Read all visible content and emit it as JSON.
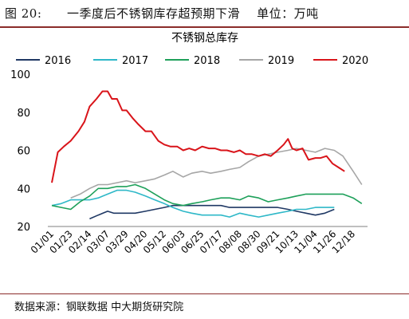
{
  "header": {
    "title": "图 20:      一季度后不锈钢库存超预期下滑    单位：万吨"
  },
  "source": "数据来源：钢联数据 中大期货研究院",
  "colors": {
    "header_rule": "#8b2c2a"
  },
  "chart_data": {
    "type": "line",
    "title": "不锈钢总库存",
    "xlabel": "",
    "ylabel": "",
    "ylim": [
      20,
      100
    ],
    "yticks": [
      20,
      40,
      60,
      80,
      100
    ],
    "grid": false,
    "legend": "top",
    "x_ticks": [
      "01/01",
      "01/23",
      "02/14",
      "03/07",
      "03/29",
      "04/20",
      "05/12",
      "06/03",
      "06/25",
      "07/17",
      "08/08",
      "08/30",
      "09/21",
      "10/13",
      "11/04",
      "11/26",
      "12/18"
    ],
    "series": [
      {
        "name": "2016",
        "color": "#1f3864",
        "points": [
          [
            "02/14",
            24
          ],
          [
            "02/24",
            26
          ],
          [
            "03/07",
            28
          ],
          [
            "03/14",
            27
          ],
          [
            "03/29",
            27
          ],
          [
            "04/08",
            27
          ],
          [
            "04/20",
            28
          ],
          [
            "05/01",
            29
          ],
          [
            "05/12",
            30
          ],
          [
            "05/22",
            31
          ],
          [
            "06/03",
            31
          ],
          [
            "06/13",
            31
          ],
          [
            "06/25",
            31
          ],
          [
            "07/05",
            31
          ],
          [
            "07/17",
            31
          ],
          [
            "07/27",
            30
          ],
          [
            "08/08",
            30
          ],
          [
            "08/18",
            30
          ],
          [
            "08/30",
            30
          ],
          [
            "09/10",
            30
          ],
          [
            "09/21",
            30
          ],
          [
            "10/03",
            29
          ],
          [
            "10/13",
            28
          ],
          [
            "10/24",
            27
          ],
          [
            "11/04",
            26
          ],
          [
            "11/15",
            27
          ],
          [
            "11/26",
            29
          ]
        ]
      },
      {
        "name": "2017",
        "color": "#2eb8c8",
        "points": [
          [
            "01/01",
            31
          ],
          [
            "01/12",
            32
          ],
          [
            "01/23",
            34
          ],
          [
            "02/03",
            34
          ],
          [
            "02/14",
            34
          ],
          [
            "02/24",
            35
          ],
          [
            "03/07",
            37
          ],
          [
            "03/18",
            39
          ],
          [
            "03/29",
            39
          ],
          [
            "04/08",
            38
          ],
          [
            "04/20",
            36
          ],
          [
            "05/01",
            34
          ],
          [
            "05/12",
            32
          ],
          [
            "05/22",
            30
          ],
          [
            "06/03",
            28
          ],
          [
            "06/13",
            27
          ],
          [
            "06/25",
            26
          ],
          [
            "07/05",
            26
          ],
          [
            "07/17",
            26
          ],
          [
            "07/27",
            25
          ],
          [
            "08/08",
            27
          ],
          [
            "08/18",
            26
          ],
          [
            "08/30",
            25
          ],
          [
            "09/10",
            26
          ],
          [
            "09/21",
            27
          ],
          [
            "10/03",
            28
          ],
          [
            "10/13",
            29
          ],
          [
            "10/24",
            29
          ],
          [
            "11/04",
            30
          ],
          [
            "11/15",
            30
          ],
          [
            "11/26",
            30
          ]
        ]
      },
      {
        "name": "2018",
        "color": "#1ea05a",
        "points": [
          [
            "01/01",
            31
          ],
          [
            "01/12",
            30
          ],
          [
            "01/23",
            29
          ],
          [
            "02/03",
            33
          ],
          [
            "02/14",
            36
          ],
          [
            "02/24",
            40
          ],
          [
            "03/07",
            40
          ],
          [
            "03/18",
            41
          ],
          [
            "03/29",
            41
          ],
          [
            "04/08",
            42
          ],
          [
            "04/20",
            40
          ],
          [
            "05/01",
            37
          ],
          [
            "05/12",
            34
          ],
          [
            "05/22",
            32
          ],
          [
            "06/03",
            31
          ],
          [
            "06/13",
            32
          ],
          [
            "06/25",
            33
          ],
          [
            "07/05",
            34
          ],
          [
            "07/17",
            35
          ],
          [
            "07/27",
            35
          ],
          [
            "08/08",
            34
          ],
          [
            "08/18",
            36
          ],
          [
            "08/30",
            35
          ],
          [
            "09/10",
            33
          ],
          [
            "09/21",
            34
          ],
          [
            "10/03",
            35
          ],
          [
            "10/13",
            36
          ],
          [
            "10/24",
            37
          ],
          [
            "11/04",
            37
          ],
          [
            "11/15",
            37
          ],
          [
            "11/26",
            37
          ],
          [
            "12/06",
            37
          ],
          [
            "12/18",
            35
          ],
          [
            "12/28",
            32
          ]
        ]
      },
      {
        "name": "2019",
        "color": "#a6a6a6",
        "points": [
          [
            "01/23",
            35
          ],
          [
            "02/03",
            37
          ],
          [
            "02/14",
            40
          ],
          [
            "02/24",
            42
          ],
          [
            "03/07",
            42
          ],
          [
            "03/18",
            43
          ],
          [
            "03/29",
            44
          ],
          [
            "04/08",
            43
          ],
          [
            "04/20",
            44
          ],
          [
            "05/01",
            45
          ],
          [
            "05/12",
            47
          ],
          [
            "05/22",
            49
          ],
          [
            "06/03",
            46
          ],
          [
            "06/13",
            48
          ],
          [
            "06/25",
            49
          ],
          [
            "07/05",
            48
          ],
          [
            "07/17",
            49
          ],
          [
            "07/27",
            50
          ],
          [
            "08/08",
            51
          ],
          [
            "08/18",
            54
          ],
          [
            "08/30",
            57
          ],
          [
            "09/10",
            58
          ],
          [
            "09/21",
            59
          ],
          [
            "10/03",
            60
          ],
          [
            "10/13",
            61
          ],
          [
            "10/24",
            60
          ],
          [
            "11/04",
            59
          ],
          [
            "11/15",
            61
          ],
          [
            "11/26",
            60
          ],
          [
            "12/06",
            57
          ],
          [
            "12/18",
            49
          ],
          [
            "12/28",
            42
          ]
        ]
      },
      {
        "name": "2020",
        "color": "#d9141a",
        "points": [
          [
            "01/01",
            43
          ],
          [
            "01/08",
            59
          ],
          [
            "01/15",
            62
          ],
          [
            "01/23",
            65
          ],
          [
            "02/01",
            70
          ],
          [
            "02/08",
            75
          ],
          [
            "02/14",
            83
          ],
          [
            "02/22",
            87
          ],
          [
            "03/01",
            91
          ],
          [
            "03/07",
            91
          ],
          [
            "03/12",
            87
          ],
          [
            "03/18",
            87
          ],
          [
            "03/24",
            81
          ],
          [
            "03/29",
            81
          ],
          [
            "04/05",
            77
          ],
          [
            "04/11",
            74
          ],
          [
            "04/20",
            70
          ],
          [
            "04/27",
            70
          ],
          [
            "05/05",
            65
          ],
          [
            "05/12",
            63
          ],
          [
            "05/19",
            62
          ],
          [
            "05/27",
            62
          ],
          [
            "06/03",
            60
          ],
          [
            "06/10",
            61
          ],
          [
            "06/17",
            60
          ],
          [
            "06/25",
            62
          ],
          [
            "07/03",
            61
          ],
          [
            "07/10",
            61
          ],
          [
            "07/17",
            60
          ],
          [
            "07/24",
            60
          ],
          [
            "08/01",
            59
          ],
          [
            "08/08",
            60
          ],
          [
            "08/15",
            58
          ],
          [
            "08/22",
            58
          ],
          [
            "08/30",
            57
          ],
          [
            "09/06",
            58
          ],
          [
            "09/13",
            57
          ],
          [
            "09/21",
            60
          ],
          [
            "09/28",
            63
          ],
          [
            "10/03",
            66
          ],
          [
            "10/08",
            61
          ],
          [
            "10/13",
            60
          ],
          [
            "10/20",
            61
          ],
          [
            "10/27",
            55
          ],
          [
            "11/04",
            56
          ],
          [
            "11/10",
            56
          ],
          [
            "11/17",
            57
          ],
          [
            "11/24",
            53
          ],
          [
            "12/01",
            51
          ],
          [
            "12/08",
            49
          ]
        ]
      }
    ]
  }
}
